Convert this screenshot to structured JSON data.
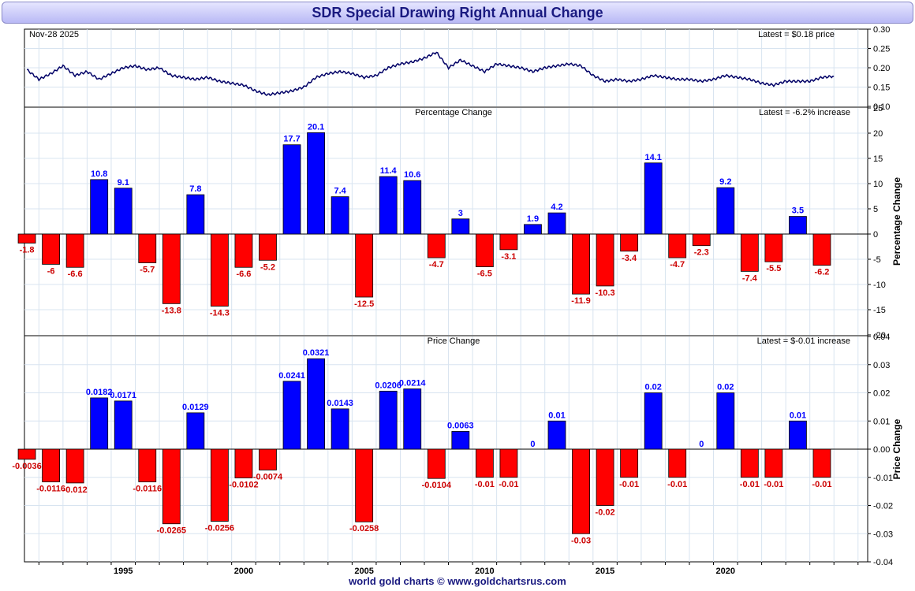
{
  "title": "SDR Special Drawing Right Annual Change",
  "footer": "world gold charts © www.goldchartsrus.com",
  "colors": {
    "positive": "#0000ff",
    "negative": "#ff0000",
    "line": "#000066",
    "grid": "#d8e4f0"
  },
  "chart_data": [
    {
      "type": "line",
      "panel": "price",
      "date_label": "Nov-28  2025",
      "latest_label": "Latest = $0.18 price",
      "ylim": [
        0.1,
        0.3
      ],
      "yticks": [
        "0.30",
        "0.25",
        "0.20",
        "0.15",
        "0.10"
      ],
      "xlim": [
        1990.9,
        2025.9
      ],
      "x": [
        1991.0,
        1991.5,
        1992.0,
        1992.5,
        1993.0,
        1993.5,
        1994.0,
        1994.5,
        1995.0,
        1995.5,
        1996.0,
        1996.5,
        1997.0,
        1997.5,
        1998.0,
        1998.5,
        1999.0,
        1999.5,
        2000.0,
        2000.5,
        2001.0,
        2001.5,
        2002.0,
        2002.5,
        2003.0,
        2003.5,
        2004.0,
        2004.5,
        2005.0,
        2005.5,
        2006.0,
        2006.5,
        2007.0,
        2007.5,
        2008.0,
        2008.5,
        2009.0,
        2009.5,
        2010.0,
        2010.5,
        2011.0,
        2011.5,
        2012.0,
        2012.5,
        2013.0,
        2013.5,
        2014.0,
        2014.5,
        2015.0,
        2015.5,
        2016.0,
        2016.5,
        2017.0,
        2017.5,
        2018.0,
        2018.5,
        2019.0,
        2019.5,
        2020.0,
        2020.5,
        2021.0,
        2021.5,
        2022.0,
        2022.5,
        2023.0,
        2023.5,
        2024.0,
        2024.5
      ],
      "y": [
        0.195,
        0.17,
        0.185,
        0.205,
        0.18,
        0.19,
        0.17,
        0.185,
        0.2,
        0.205,
        0.195,
        0.2,
        0.18,
        0.175,
        0.17,
        0.175,
        0.165,
        0.16,
        0.155,
        0.14,
        0.13,
        0.135,
        0.14,
        0.15,
        0.175,
        0.185,
        0.19,
        0.185,
        0.175,
        0.18,
        0.2,
        0.21,
        0.215,
        0.225,
        0.24,
        0.2,
        0.22,
        0.205,
        0.19,
        0.21,
        0.205,
        0.2,
        0.19,
        0.2,
        0.205,
        0.21,
        0.205,
        0.18,
        0.165,
        0.17,
        0.165,
        0.17,
        0.18,
        0.175,
        0.17,
        0.17,
        0.165,
        0.17,
        0.18,
        0.175,
        0.17,
        0.16,
        0.155,
        0.165,
        0.165,
        0.165,
        0.175,
        0.178
      ]
    },
    {
      "type": "bar",
      "panel": "percentage",
      "title": "Percentage Change",
      "latest_label": "Latest = -6.2% increase",
      "ylabel": "Percentage Change",
      "ylim": [
        -20,
        25
      ],
      "yticks": [
        "25",
        "20",
        "15",
        "10",
        "5",
        "0",
        "-5",
        "-10",
        "-15",
        "-20"
      ],
      "categories": [
        1991,
        1992,
        1993,
        1994,
        1995,
        1996,
        1997,
        1998,
        1999,
        2000,
        2001,
        2002,
        2003,
        2004,
        2005,
        2006,
        2007,
        2008,
        2009,
        2010,
        2011,
        2012,
        2013,
        2014,
        2015,
        2016,
        2017,
        2018,
        2019,
        2020,
        2021,
        2022,
        2023,
        2024
      ],
      "values": [
        -1.8,
        -6,
        -6.6,
        10.8,
        9.1,
        -5.7,
        -13.8,
        7.8,
        -14.3,
        -6.6,
        -5.2,
        17.7,
        20.1,
        7.4,
        -12.5,
        11.4,
        10.6,
        -4.7,
        3,
        -6.5,
        -3.1,
        1.9,
        4.2,
        -11.9,
        -10.3,
        -3.4,
        14.1,
        -4.7,
        -2.3,
        9.2,
        -7.4,
        -5.5,
        3.5,
        -6.2
      ],
      "labels": [
        "-1.8",
        "-6",
        "-6.6",
        "10.8",
        "9.1",
        "-5.7",
        "-13.8",
        "7.8",
        "-14.3",
        "-6.6",
        "-5.2",
        "17.7",
        "20.1",
        "7.4",
        "-12.5",
        "11.4",
        "10.6",
        "-4.7",
        "3",
        "-6.5",
        "-3.1",
        "1.9",
        "4.2",
        "-11.9",
        "-10.3",
        "-3.4",
        "14.1",
        "-4.7",
        "-2.3",
        "9.2",
        "-7.4",
        "-5.5",
        "3.5",
        "-6.2"
      ]
    },
    {
      "type": "bar",
      "panel": "price_change",
      "title": "Price Change",
      "latest_label": "Latest = $-0.01 increase",
      "ylabel": "Price Change",
      "ylim": [
        -0.04,
        0.04
      ],
      "yticks": [
        "0.04",
        "0.03",
        "0.02",
        "0.01",
        "0.00",
        "-0.01",
        "-0.02",
        "-0.03",
        "-0.04"
      ],
      "categories": [
        1991,
        1992,
        1993,
        1994,
        1995,
        1996,
        1997,
        1998,
        1999,
        2000,
        2001,
        2002,
        2003,
        2004,
        2005,
        2006,
        2007,
        2008,
        2009,
        2010,
        2011,
        2012,
        2013,
        2014,
        2015,
        2016,
        2017,
        2018,
        2019,
        2020,
        2021,
        2022,
        2023,
        2024
      ],
      "values": [
        -0.0036,
        -0.0116,
        -0.012,
        0.0182,
        0.0171,
        -0.0116,
        -0.0265,
        0.0129,
        -0.0256,
        -0.0102,
        -0.0074,
        0.0241,
        0.0321,
        0.0143,
        -0.0258,
        0.0206,
        0.0214,
        -0.0104,
        0.0063,
        -0.01,
        -0.01,
        0,
        0.01,
        -0.03,
        -0.02,
        -0.01,
        0.02,
        -0.01,
        0,
        0.02,
        -0.01,
        -0.01,
        0.01,
        -0.01
      ],
      "labels": [
        "-0.0036",
        "-0.0116",
        "-0.012",
        "0.0182",
        "0.0171",
        "-0.0116",
        "-0.0265",
        "0.0129",
        "-0.0256",
        "-0.0102",
        "-0.0074",
        "0.0241",
        "0.0321",
        "0.0143",
        "-0.0258",
        "0.0206",
        "0.0214",
        "-0.0104",
        "0.0063",
        "-0.01",
        "-0.01",
        "0",
        "0.01",
        "-0.03",
        "-0.02",
        "-0.01",
        "0.02",
        "-0.01",
        "0",
        "0.02",
        "-0.01",
        "-0.01",
        "0.01",
        "-0.01"
      ]
    }
  ],
  "x_axis": {
    "ticks": [
      "1995",
      "2000",
      "2005",
      "2010",
      "2015",
      "2020"
    ],
    "tick_years": [
      1995,
      2000,
      2005,
      2010,
      2015,
      2020
    ]
  }
}
